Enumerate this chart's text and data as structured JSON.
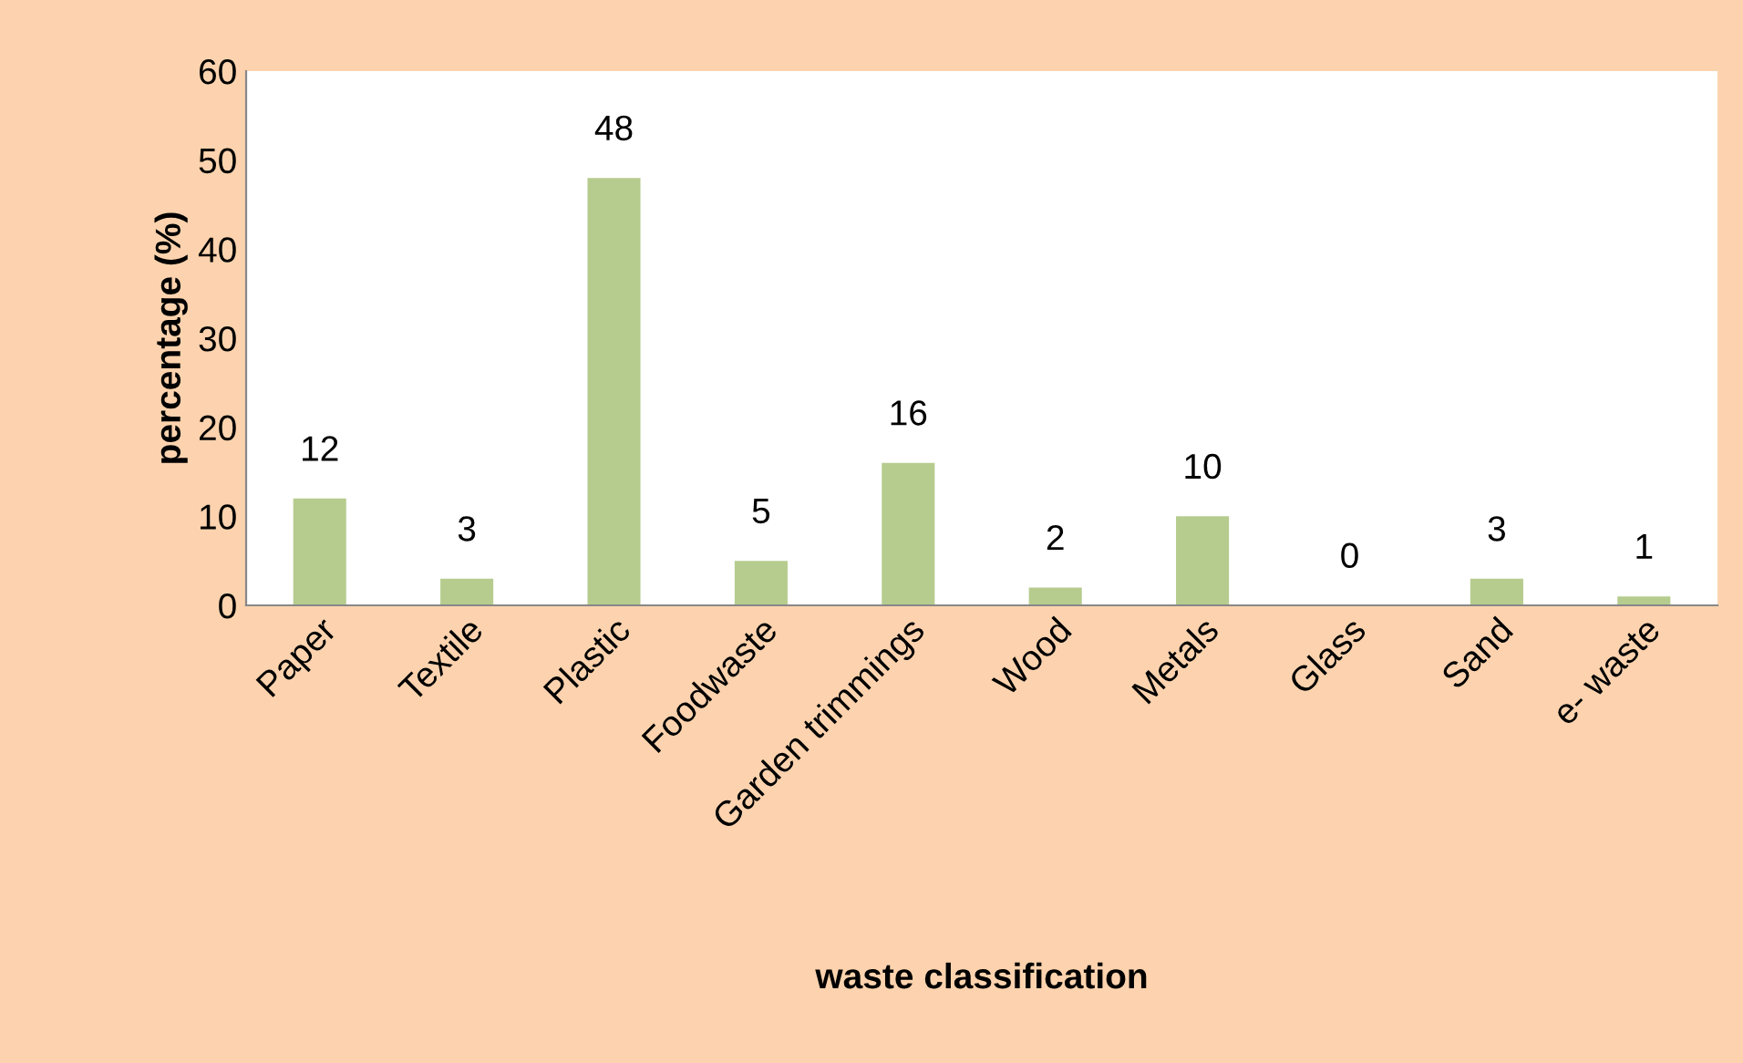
{
  "chart_data": {
    "type": "bar",
    "xlabel": "waste classification",
    "ylabel": "percentage (%)",
    "categories": [
      "Paper",
      "Textile",
      "Plastic",
      "Foodwaste",
      "Garden trimmings",
      "Wood",
      "Metals",
      "Glass",
      "Sand",
      "e- waste"
    ],
    "values": [
      12,
      3,
      48,
      5,
      16,
      2,
      10,
      0,
      3,
      1
    ],
    "color": "#b6cc8f",
    "ylim": [
      0,
      60
    ],
    "yticks": [
      0,
      10,
      20,
      30,
      40,
      50,
      60
    ],
    "data_labels": true,
    "grid": false,
    "legend": false
  }
}
